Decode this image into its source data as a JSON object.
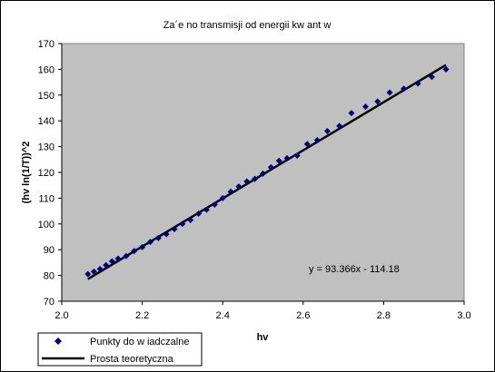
{
  "chart_data": {
    "type": "scatter",
    "title": "Za´e no     transmisji od energii kw ant   w",
    "xlabel": "hv",
    "ylabel": "(hv ln(1/T))^2",
    "xlim": [
      2.0,
      3.0
    ],
    "ylim": [
      70,
      170
    ],
    "x_ticks": [
      "2.0",
      "2.2",
      "2.4",
      "2.6",
      "2.8",
      "3.0"
    ],
    "y_ticks": [
      "70",
      "80",
      "90",
      "100",
      "110",
      "120",
      "130",
      "140",
      "150",
      "160",
      "170"
    ],
    "plot_background": "#c0c0c0",
    "grid": false,
    "legend_position": "bottom-left",
    "equation_text": "y = 93.366x - 114.18",
    "series": [
      {
        "name": "Punkty do  w iadczalne",
        "kind": "points",
        "marker": "diamond",
        "color": "#00007f",
        "x": [
          2.065,
          2.08,
          2.095,
          2.11,
          2.125,
          2.14,
          2.16,
          2.18,
          2.2,
          2.22,
          2.24,
          2.26,
          2.28,
          2.3,
          2.32,
          2.34,
          2.36,
          2.38,
          2.4,
          2.42,
          2.44,
          2.46,
          2.48,
          2.5,
          2.52,
          2.54,
          2.56,
          2.585,
          2.61,
          2.635,
          2.66,
          2.69,
          2.72,
          2.755,
          2.785,
          2.815,
          2.85,
          2.885,
          2.92,
          2.955
        ],
        "y": [
          80.5,
          81.5,
          82.5,
          84,
          85.5,
          86.5,
          87.5,
          89.5,
          91,
          93,
          94.5,
          96,
          98,
          100,
          101.5,
          104,
          105.5,
          107.5,
          110,
          112.5,
          114.5,
          116.5,
          117.5,
          119.5,
          122,
          124.5,
          125.5,
          126.5,
          131,
          132.5,
          136,
          138,
          143,
          145.5,
          147.5,
          151,
          152.5,
          154.5,
          157,
          160
        ]
      },
      {
        "name": "Prosta teoretyczna",
        "kind": "line",
        "color": "#000000",
        "x": [
          2.065,
          2.955
        ],
        "y": [
          78.62,
          161.72
        ]
      }
    ]
  }
}
